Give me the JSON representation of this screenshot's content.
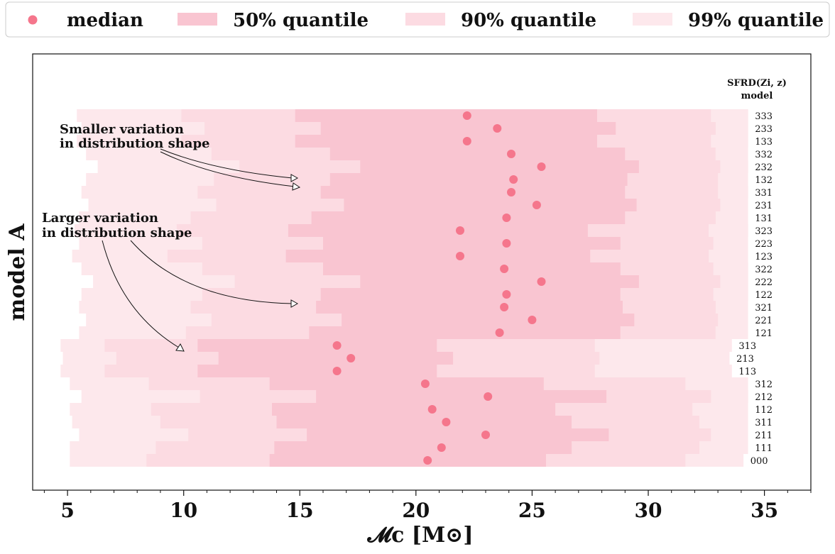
{
  "legend": {
    "items": [
      {
        "kind": "dot",
        "label": "median"
      },
      {
        "kind": "band50",
        "label": "50%  quantile"
      },
      {
        "kind": "band90",
        "label": "90%  quantile"
      },
      {
        "kind": "band99",
        "label": "99%  quantile"
      }
    ]
  },
  "colors": {
    "median": "#f5768c",
    "band50": "#f9c5d1",
    "band90": "#fcdbe2",
    "band99": "#fde8ec",
    "axis": "#111111",
    "background": "#ffffff"
  },
  "axes": {
    "xlabel": "𝓜c  [M⊙]",
    "ylabel": "model  A",
    "header_line1": "SFRD(Zi, z)",
    "header_line2": "model"
  },
  "annotations": [
    {
      "id": "smaller",
      "lines": [
        "Smaller variation",
        "in distribution shape"
      ]
    },
    {
      "id": "larger",
      "lines": [
        "Larger variation",
        "in distribution shape"
      ]
    }
  ],
  "chart_data": {
    "type": "range",
    "xlim": [
      3.5,
      37
    ],
    "x_major_ticks": [
      5,
      10,
      15,
      20,
      25,
      30,
      35
    ],
    "x_minor_step": 1,
    "grid": false,
    "legend_placement": "top-outside",
    "series": [
      {
        "model": "333",
        "median": 22.2,
        "q50": [
          14.8,
          27.8
        ],
        "q90": [
          9.9,
          32.7
        ],
        "q99": [
          5.4,
          34.3
        ]
      },
      {
        "model": "233",
        "median": 23.5,
        "q50": [
          15.9,
          28.6
        ],
        "q90": [
          10.9,
          32.9
        ],
        "q99": [
          5.6,
          34.3
        ]
      },
      {
        "model": "133",
        "median": 22.2,
        "q50": [
          14.8,
          27.8
        ],
        "q90": [
          9.9,
          32.7
        ],
        "q99": [
          5.4,
          34.3
        ]
      },
      {
        "model": "332",
        "median": 24.1,
        "q50": [
          16.3,
          29.0
        ],
        "q90": [
          11.2,
          32.9
        ],
        "q99": [
          5.8,
          34.3
        ]
      },
      {
        "model": "232",
        "median": 25.4,
        "q50": [
          17.6,
          29.6
        ],
        "q90": [
          12.4,
          33.1
        ],
        "q99": [
          6.3,
          34.3
        ]
      },
      {
        "model": "132",
        "median": 24.2,
        "q50": [
          16.3,
          29.1
        ],
        "q90": [
          11.3,
          33.0
        ],
        "q99": [
          5.8,
          34.3
        ]
      },
      {
        "model": "331",
        "median": 24.1,
        "q50": [
          15.9,
          29.0
        ],
        "q90": [
          10.6,
          33.0
        ],
        "q99": [
          5.6,
          34.3
        ]
      },
      {
        "model": "231",
        "median": 25.2,
        "q50": [
          16.9,
          29.5
        ],
        "q90": [
          11.4,
          33.1
        ],
        "q99": [
          5.9,
          34.3
        ]
      },
      {
        "model": "131",
        "median": 23.9,
        "q50": [
          15.5,
          29.0
        ],
        "q90": [
          10.3,
          32.9
        ],
        "q99": [
          5.5,
          34.3
        ]
      },
      {
        "model": "323",
        "median": 21.9,
        "q50": [
          14.5,
          27.4
        ],
        "q90": [
          9.7,
          32.6
        ],
        "q99": [
          5.3,
          34.3
        ]
      },
      {
        "model": "223",
        "median": 23.9,
        "q50": [
          16.0,
          28.8
        ],
        "q90": [
          10.8,
          32.8
        ],
        "q99": [
          5.5,
          34.3
        ]
      },
      {
        "model": "123",
        "median": 21.9,
        "q50": [
          14.4,
          27.5
        ],
        "q90": [
          9.3,
          32.6
        ],
        "q99": [
          5.2,
          34.3
        ]
      },
      {
        "model": "322",
        "median": 23.8,
        "q50": [
          16.0,
          28.8
        ],
        "q90": [
          10.8,
          32.8
        ],
        "q99": [
          5.6,
          34.3
        ]
      },
      {
        "model": "222",
        "median": 25.4,
        "q50": [
          17.6,
          29.6
        ],
        "q90": [
          12.2,
          33.1
        ],
        "q99": [
          6.1,
          34.3
        ]
      },
      {
        "model": "122",
        "median": 23.9,
        "q50": [
          15.9,
          28.8
        ],
        "q90": [
          10.8,
          32.8
        ],
        "q99": [
          5.6,
          34.3
        ]
      },
      {
        "model": "321",
        "median": 23.8,
        "q50": [
          15.7,
          28.9
        ],
        "q90": [
          10.3,
          32.9
        ],
        "q99": [
          5.5,
          34.3
        ]
      },
      {
        "model": "221",
        "median": 25.0,
        "q50": [
          16.8,
          29.4
        ],
        "q90": [
          11.2,
          33.0
        ],
        "q99": [
          5.8,
          34.3
        ]
      },
      {
        "model": "121",
        "median": 23.6,
        "q50": [
          15.4,
          28.8
        ],
        "q90": [
          10.1,
          32.9
        ],
        "q99": [
          5.5,
          34.3
        ]
      },
      {
        "model": "313",
        "median": 16.6,
        "q50": [
          10.6,
          20.9
        ],
        "q90": [
          6.6,
          27.7
        ],
        "q99": [
          4.7,
          33.6
        ]
      },
      {
        "model": "213",
        "median": 17.2,
        "q50": [
          11.5,
          21.6
        ],
        "q90": [
          7.1,
          27.9
        ],
        "q99": [
          4.8,
          33.5
        ]
      },
      {
        "model": "113",
        "median": 16.6,
        "q50": [
          10.6,
          20.9
        ],
        "q90": [
          6.6,
          27.7
        ],
        "q99": [
          4.7,
          33.6
        ]
      },
      {
        "model": "312",
        "median": 20.4,
        "q50": [
          13.7,
          25.5
        ],
        "q90": [
          8.5,
          31.6
        ],
        "q99": [
          5.1,
          34.3
        ]
      },
      {
        "model": "212",
        "median": 23.1,
        "q50": [
          15.7,
          28.2
        ],
        "q90": [
          10.7,
          32.7
        ],
        "q99": [
          5.6,
          34.3
        ]
      },
      {
        "model": "112",
        "median": 20.7,
        "q50": [
          13.8,
          26.0
        ],
        "q90": [
          8.6,
          31.9
        ],
        "q99": [
          5.1,
          34.3
        ]
      },
      {
        "model": "311",
        "median": 21.3,
        "q50": [
          14.0,
          26.7
        ],
        "q90": [
          9.0,
          32.2
        ],
        "q99": [
          5.2,
          34.3
        ]
      },
      {
        "model": "211",
        "median": 23.0,
        "q50": [
          15.3,
          28.3
        ],
        "q90": [
          10.2,
          32.7
        ],
        "q99": [
          5.5,
          34.3
        ]
      },
      {
        "model": "111",
        "median": 21.1,
        "q50": [
          13.9,
          26.7
        ],
        "q90": [
          8.8,
          32.2
        ],
        "q99": [
          5.1,
          34.3
        ]
      },
      {
        "model": "000",
        "median": 20.5,
        "q50": [
          13.7,
          25.6
        ],
        "q90": [
          8.4,
          31.6
        ],
        "q99": [
          5.1,
          34.1
        ]
      }
    ]
  }
}
